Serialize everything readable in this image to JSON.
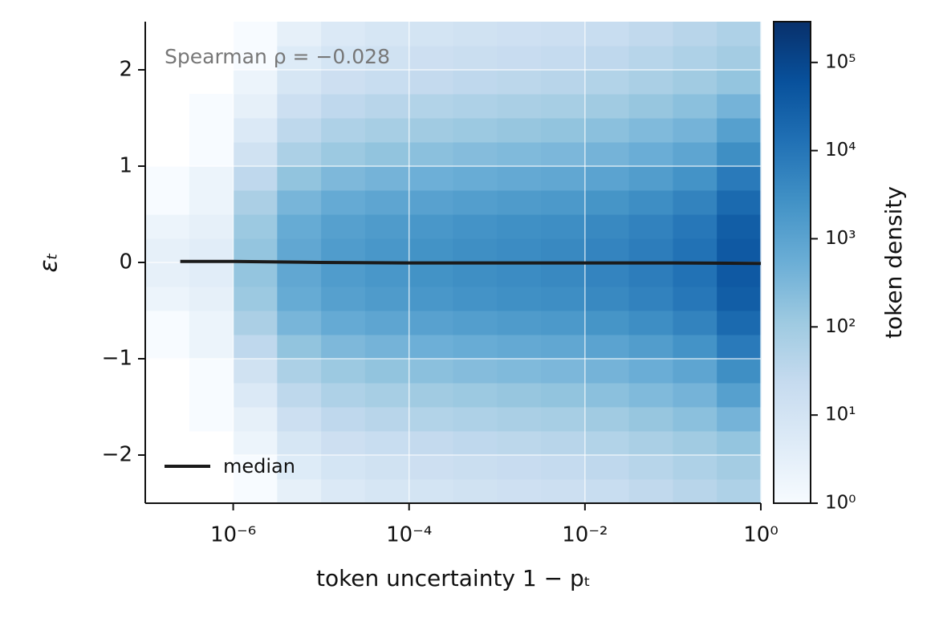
{
  "chart_data": {
    "type": "hexbin",
    "xlabel": "token uncertainty 1 − pₜ",
    "ylabel": "εₜ",
    "colorbar_label": "token density",
    "annotation": "Spearman ρ = −0.028",
    "xscale": "log",
    "xlim": [
      1e-07,
      1
    ],
    "ylim": [
      -2.5,
      2.5
    ],
    "xticks": [
      {
        "value": 1e-06,
        "label": "10⁻⁶"
      },
      {
        "value": 0.0001,
        "label": "10⁻⁴"
      },
      {
        "value": 0.01,
        "label": "10⁻²"
      },
      {
        "value": 1,
        "label": "10⁰"
      }
    ],
    "yticks": [
      {
        "value": -2,
        "label": "−2"
      },
      {
        "value": -1,
        "label": "−1"
      },
      0,
      1,
      2
    ],
    "grid": true,
    "clim": [
      1,
      290000
    ],
    "cticks": [
      {
        "value": 1,
        "label": "10⁰"
      },
      {
        "value": 10,
        "label": "10¹"
      },
      {
        "value": 100,
        "label": "10²"
      },
      {
        "value": 1000,
        "label": "10³"
      },
      {
        "value": 10000,
        "label": "10⁴"
      },
      {
        "value": 100000,
        "label": "10⁵"
      }
    ],
    "colormap": [
      "#f7fbff",
      "#deebf7",
      "#c6dbef",
      "#9ecae1",
      "#6baed6",
      "#4292c6",
      "#2171b5",
      "#08519c",
      "#08306b"
    ],
    "xbins": [
      1e-07,
      3.162e-07,
      1e-06,
      3.162e-06,
      1e-05,
      3.162e-05,
      0.0001,
      0.0003162,
      0.001,
      0.003162,
      0.01,
      0.03162,
      0.1,
      0.3162,
      1
    ],
    "ybins": [
      -2.5,
      -2.25,
      -2,
      -1.75,
      -1.5,
      -1.25,
      -1,
      -0.75,
      -0.5,
      -0.25,
      0,
      0.25,
      0.5,
      0.75,
      1,
      1.25,
      1.5,
      1.75,
      2,
      2.25,
      2.5
    ],
    "values": [
      [
        null,
        null,
        1,
        3,
        6,
        8,
        10,
        12,
        14,
        16,
        20,
        28,
        40,
        60
      ],
      [
        null,
        null,
        1,
        5,
        9,
        12,
        15,
        18,
        21,
        24,
        30,
        42,
        60,
        90
      ],
      [
        null,
        null,
        2,
        8,
        15,
        20,
        25,
        30,
        35,
        40,
        50,
        70,
        100,
        150
      ],
      [
        null,
        1,
        3,
        16,
        30,
        40,
        50,
        60,
        70,
        80,
        100,
        140,
        200,
        400
      ],
      [
        null,
        1,
        6,
        32,
        60,
        80,
        100,
        120,
        140,
        160,
        200,
        280,
        400,
        1200
      ],
      [
        null,
        1,
        12,
        64,
        120,
        160,
        200,
        240,
        280,
        320,
        400,
        560,
        900,
        3000
      ],
      [
        1,
        2,
        30,
        160,
        300,
        400,
        500,
        600,
        700,
        800,
        1000,
        1400,
        2400,
        8000
      ],
      [
        1,
        2,
        68,
        360,
        680,
        900,
        1100,
        1350,
        1600,
        1800,
        2250,
        3150,
        5400,
        18000
      ],
      [
        2,
        3,
        120,
        640,
        1200,
        1600,
        2000,
        2400,
        2800,
        3200,
        4000,
        5600,
        9600,
        32000
      ],
      [
        3,
        4,
        150,
        800,
        1500,
        2000,
        2500,
        3000,
        3500,
        4000,
        5000,
        7000,
        12000,
        40000
      ],
      [
        3,
        4,
        150,
        800,
        1500,
        2000,
        2500,
        3000,
        3500,
        4000,
        5000,
        7000,
        12000,
        40000
      ],
      [
        2,
        3,
        120,
        640,
        1200,
        1600,
        2000,
        2400,
        2800,
        3200,
        4000,
        5600,
        9600,
        32000
      ],
      [
        1,
        2,
        68,
        360,
        680,
        900,
        1100,
        1350,
        1600,
        1800,
        2250,
        3150,
        5400,
        18000
      ],
      [
        1,
        2,
        30,
        160,
        300,
        400,
        500,
        600,
        700,
        800,
        1000,
        1400,
        2400,
        8000
      ],
      [
        null,
        1,
        12,
        64,
        120,
        160,
        200,
        240,
        280,
        320,
        400,
        560,
        900,
        3000
      ],
      [
        null,
        1,
        6,
        32,
        60,
        80,
        100,
        120,
        140,
        160,
        200,
        280,
        400,
        1200
      ],
      [
        null,
        1,
        3,
        16,
        30,
        40,
        50,
        60,
        70,
        80,
        100,
        140,
        200,
        400
      ],
      [
        null,
        null,
        2,
        8,
        15,
        20,
        25,
        30,
        35,
        40,
        50,
        70,
        100,
        150
      ],
      [
        null,
        null,
        1,
        5,
        9,
        12,
        15,
        18,
        21,
        24,
        30,
        42,
        60,
        90
      ],
      [
        null,
        null,
        1,
        3,
        6,
        8,
        10,
        12,
        14,
        16,
        20,
        28,
        40,
        60
      ]
    ],
    "series": [
      {
        "name": "median",
        "color": "#1a1a1a",
        "x": [
          2.5e-07,
          1e-06,
          1e-05,
          0.0001,
          0.001,
          0.01,
          0.1,
          1
        ],
        "values": [
          0.01,
          0.01,
          0.0,
          -0.005,
          -0.005,
          -0.005,
          -0.005,
          -0.01
        ]
      }
    ]
  }
}
